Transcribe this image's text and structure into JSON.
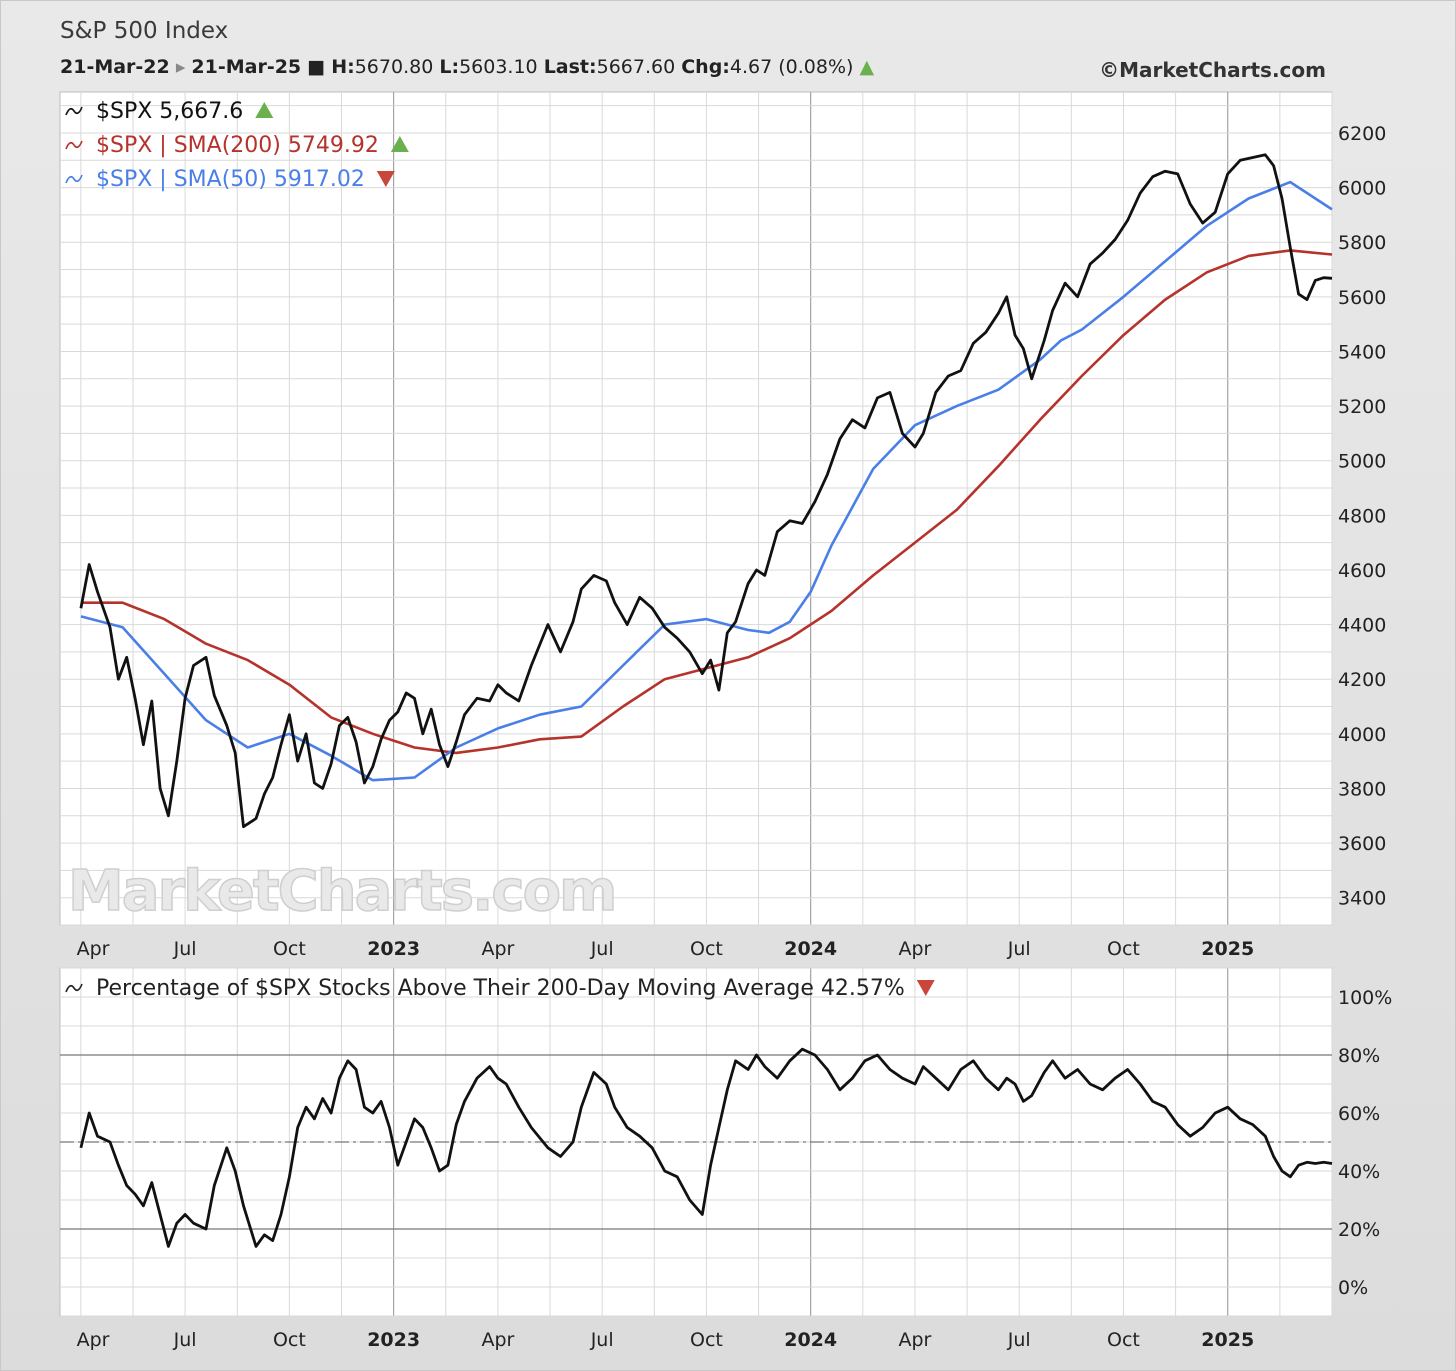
{
  "header": {
    "title": "S&P 500 Index",
    "start": "21-Mar-22",
    "end": "21-Mar-25",
    "high_label": "H:",
    "high": "5670.80",
    "low_label": "L:",
    "low": "5603.10",
    "last_label": "Last:",
    "last": "5667.60",
    "chg_label": "Chg:",
    "chg": "4.67 (0.08%)",
    "copyright": "©MarketCharts.com"
  },
  "watermark": "MarketCharts.com",
  "colors": {
    "price": "#111111",
    "sma200": "#b5332c",
    "sma50": "#4a7fe8",
    "up": "#6ab04c",
    "down": "#c8463a",
    "grid": "#d9d9d9"
  },
  "x_labels": [
    {
      "t": 0.01,
      "label": "Apr",
      "bold": false
    },
    {
      "t": 0.25,
      "label": "Jul",
      "bold": false
    },
    {
      "t": 0.5,
      "label": "Oct",
      "bold": false
    },
    {
      "t": 0.75,
      "label": "2023",
      "bold": true
    },
    {
      "t": 1.0,
      "label": "Apr",
      "bold": false
    },
    {
      "t": 1.25,
      "label": "Jul",
      "bold": false
    },
    {
      "t": 1.5,
      "label": "Oct",
      "bold": false
    },
    {
      "t": 1.75,
      "label": "2024",
      "bold": true
    },
    {
      "t": 2.0,
      "label": "Apr",
      "bold": false
    },
    {
      "t": 2.25,
      "label": "Jul",
      "bold": false
    },
    {
      "t": 2.5,
      "label": "Oct",
      "bold": false
    },
    {
      "t": 2.75,
      "label": "2025",
      "bold": true
    }
  ],
  "chart_data": [
    {
      "type": "line",
      "legend": [
        {
          "text": "$SPX 5,667.6",
          "color": "#111111",
          "arrow": "up"
        },
        {
          "text": "$SPX | SMA(200) 5749.92",
          "color": "#b5332c",
          "arrow": "up"
        },
        {
          "text": "$SPX | SMA(50) 5917.02",
          "color": "#4a7fe8",
          "arrow": "down"
        }
      ],
      "ylim": [
        3300,
        6350
      ],
      "yticks": [
        3400,
        3600,
        3800,
        4000,
        4200,
        4400,
        4600,
        4800,
        5000,
        5200,
        5400,
        5600,
        5800,
        6000,
        6200
      ],
      "series": [
        {
          "name": "$SPX",
          "color": "#111111",
          "x": [
            0,
            0.02,
            0.04,
            0.07,
            0.09,
            0.11,
            0.13,
            0.15,
            0.17,
            0.19,
            0.21,
            0.23,
            0.25,
            0.27,
            0.3,
            0.32,
            0.35,
            0.37,
            0.39,
            0.42,
            0.44,
            0.46,
            0.48,
            0.5,
            0.52,
            0.54,
            0.56,
            0.58,
            0.6,
            0.62,
            0.64,
            0.66,
            0.68,
            0.7,
            0.72,
            0.74,
            0.76,
            0.78,
            0.8,
            0.82,
            0.84,
            0.86,
            0.88,
            0.9,
            0.92,
            0.95,
            0.98,
            1.0,
            1.02,
            1.05,
            1.08,
            1.12,
            1.15,
            1.18,
            1.2,
            1.23,
            1.26,
            1.28,
            1.31,
            1.34,
            1.37,
            1.4,
            1.43,
            1.46,
            1.49,
            1.51,
            1.53,
            1.55,
            1.57,
            1.6,
            1.62,
            1.64,
            1.67,
            1.7,
            1.73,
            1.76,
            1.79,
            1.82,
            1.85,
            1.88,
            1.91,
            1.94,
            1.97,
            2.0,
            2.02,
            2.05,
            2.08,
            2.11,
            2.14,
            2.17,
            2.2,
            2.22,
            2.24,
            2.26,
            2.28,
            2.31,
            2.33,
            2.36,
            2.39,
            2.42,
            2.45,
            2.48,
            2.51,
            2.54,
            2.57,
            2.6,
            2.63,
            2.66,
            2.69,
            2.72,
            2.75,
            2.78,
            2.81,
            2.84,
            2.86,
            2.88,
            2.9,
            2.92,
            2.94,
            2.96,
            2.98,
            3.0
          ],
          "y": [
            4460,
            4620,
            4520,
            4390,
            4200,
            4280,
            4130,
            3960,
            4120,
            3800,
            3700,
            3900,
            4130,
            4250,
            4280,
            4140,
            4030,
            3930,
            3660,
            3690,
            3780,
            3840,
            3960,
            4070,
            3900,
            4000,
            3820,
            3800,
            3890,
            4030,
            4060,
            3970,
            3820,
            3880,
            3980,
            4050,
            4080,
            4150,
            4130,
            4000,
            4090,
            3960,
            3880,
            3970,
            4070,
            4130,
            4120,
            4180,
            4150,
            4120,
            4250,
            4400,
            4300,
            4410,
            4530,
            4580,
            4560,
            4480,
            4400,
            4500,
            4460,
            4390,
            4350,
            4300,
            4220,
            4270,
            4160,
            4370,
            4410,
            4550,
            4600,
            4580,
            4740,
            4780,
            4770,
            4850,
            4950,
            5080,
            5150,
            5120,
            5230,
            5250,
            5100,
            5050,
            5100,
            5250,
            5310,
            5330,
            5430,
            5470,
            5540,
            5600,
            5460,
            5410,
            5300,
            5440,
            5550,
            5650,
            5600,
            5720,
            5760,
            5810,
            5880,
            5980,
            6040,
            6060,
            6050,
            5940,
            5870,
            5910,
            6050,
            6100,
            6110,
            6120,
            6080,
            5960,
            5780,
            5610,
            5590,
            5660,
            5670,
            5668
          ]
        },
        {
          "name": "$SPX | SMA(200)",
          "color": "#b5332c",
          "x": [
            0,
            0.1,
            0.2,
            0.3,
            0.4,
            0.5,
            0.6,
            0.7,
            0.8,
            0.9,
            1.0,
            1.1,
            1.2,
            1.3,
            1.4,
            1.5,
            1.6,
            1.7,
            1.8,
            1.9,
            2.0,
            2.1,
            2.2,
            2.3,
            2.4,
            2.5,
            2.6,
            2.7,
            2.8,
            2.9,
            3.0
          ],
          "y": [
            4480,
            4480,
            4420,
            4330,
            4270,
            4180,
            4060,
            4000,
            3950,
            3930,
            3950,
            3980,
            3990,
            4100,
            4200,
            4240,
            4280,
            4350,
            4450,
            4580,
            4700,
            4820,
            4980,
            5150,
            5310,
            5460,
            5590,
            5690,
            5750,
            5770,
            5755
          ]
        },
        {
          "name": "$SPX | SMA(50)",
          "color": "#4a7fe8",
          "x": [
            0,
            0.1,
            0.2,
            0.3,
            0.4,
            0.5,
            0.6,
            0.7,
            0.8,
            0.9,
            1.0,
            1.1,
            1.2,
            1.3,
            1.4,
            1.5,
            1.6,
            1.65,
            1.7,
            1.75,
            1.8,
            1.9,
            2.0,
            2.1,
            2.2,
            2.3,
            2.35,
            2.4,
            2.5,
            2.6,
            2.7,
            2.8,
            2.9,
            3.0
          ],
          "y": [
            4430,
            4390,
            4220,
            4050,
            3950,
            4000,
            3920,
            3830,
            3840,
            3950,
            4020,
            4070,
            4100,
            4250,
            4400,
            4420,
            4380,
            4370,
            4410,
            4520,
            4690,
            4970,
            5130,
            5200,
            5260,
            5370,
            5440,
            5480,
            5600,
            5730,
            5860,
            5960,
            6020,
            5920
          ]
        }
      ]
    },
    {
      "type": "line",
      "title": "Percentage of $SPX Stocks Above Their 200-Day Moving Average 42.57%",
      "title_arrow": "down",
      "ylim": [
        -10,
        110
      ],
      "yticks": [
        0,
        20,
        40,
        60,
        80,
        100
      ],
      "ytick_labels": [
        "0%",
        "20%",
        "40%",
        "60%",
        "80%",
        "100%"
      ],
      "reference_lines": [
        20,
        50,
        80
      ],
      "series": [
        {
          "name": "Percentage of $SPX Stocks Above Their 200-Day Moving Average",
          "color": "#111111",
          "x": [
            0,
            0.02,
            0.04,
            0.07,
            0.09,
            0.11,
            0.13,
            0.15,
            0.17,
            0.19,
            0.21,
            0.23,
            0.25,
            0.27,
            0.3,
            0.32,
            0.35,
            0.37,
            0.39,
            0.42,
            0.44,
            0.46,
            0.48,
            0.5,
            0.52,
            0.54,
            0.56,
            0.58,
            0.6,
            0.62,
            0.64,
            0.66,
            0.68,
            0.7,
            0.72,
            0.74,
            0.76,
            0.78,
            0.8,
            0.82,
            0.84,
            0.86,
            0.88,
            0.9,
            0.92,
            0.95,
            0.98,
            1.0,
            1.02,
            1.05,
            1.08,
            1.12,
            1.15,
            1.18,
            1.2,
            1.23,
            1.26,
            1.28,
            1.31,
            1.34,
            1.37,
            1.4,
            1.43,
            1.46,
            1.49,
            1.51,
            1.53,
            1.55,
            1.57,
            1.6,
            1.62,
            1.64,
            1.67,
            1.7,
            1.73,
            1.76,
            1.79,
            1.82,
            1.85,
            1.88,
            1.91,
            1.94,
            1.97,
            2.0,
            2.02,
            2.05,
            2.08,
            2.11,
            2.14,
            2.17,
            2.2,
            2.22,
            2.24,
            2.26,
            2.28,
            2.31,
            2.33,
            2.36,
            2.39,
            2.42,
            2.45,
            2.48,
            2.51,
            2.54,
            2.57,
            2.6,
            2.63,
            2.66,
            2.69,
            2.72,
            2.75,
            2.78,
            2.81,
            2.84,
            2.86,
            2.88,
            2.9,
            2.92,
            2.94,
            2.96,
            2.98,
            3.0
          ],
          "y": [
            48,
            60,
            52,
            50,
            42,
            35,
            32,
            28,
            36,
            25,
            14,
            22,
            25,
            22,
            20,
            35,
            48,
            40,
            28,
            14,
            18,
            16,
            25,
            38,
            55,
            62,
            58,
            65,
            60,
            72,
            78,
            75,
            62,
            60,
            64,
            55,
            42,
            50,
            58,
            55,
            48,
            40,
            42,
            56,
            64,
            72,
            76,
            72,
            70,
            62,
            55,
            48,
            45,
            50,
            62,
            74,
            70,
            62,
            55,
            52,
            48,
            40,
            38,
            30,
            25,
            42,
            55,
            68,
            78,
            75,
            80,
            76,
            72,
            78,
            82,
            80,
            75,
            68,
            72,
            78,
            80,
            75,
            72,
            70,
            76,
            72,
            68,
            75,
            78,
            72,
            68,
            72,
            70,
            64,
            66,
            74,
            78,
            72,
            75,
            70,
            68,
            72,
            75,
            70,
            64,
            62,
            56,
            52,
            55,
            60,
            62,
            58,
            56,
            52,
            45,
            40,
            38,
            42,
            43,
            42.57,
            43,
            42.57
          ]
        }
      ]
    }
  ]
}
